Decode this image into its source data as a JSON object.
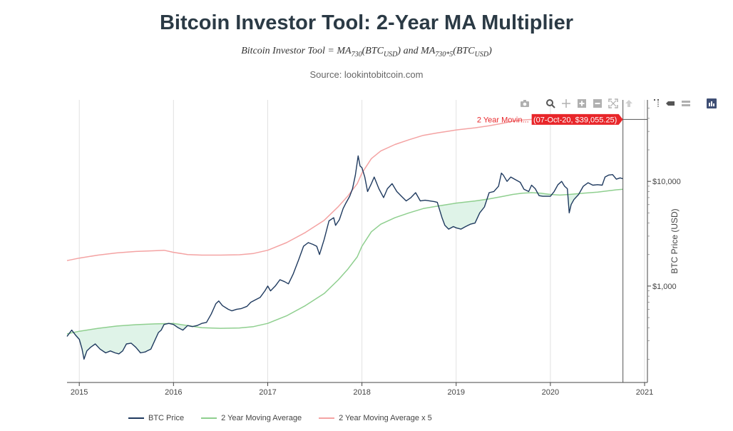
{
  "header": {
    "title": "Bitcoin Investor Tool: 2-Year MA Multiplier",
    "formula_prefix": "Bitcoin Investor Tool = MA",
    "formula_sub1": "730",
    "formula_mid": "(BTC",
    "formula_sub2": "USD",
    "formula_mid2": ") and MA",
    "formula_sub3": "730*5",
    "formula_mid3": "(BTC",
    "formula_sub4": "USD",
    "formula_end": ")",
    "source": "Source: lookintobitcoin.com"
  },
  "modebar": [
    "camera-icon",
    "zoom-icon",
    "pan-icon",
    "zoom-in-icon",
    "zoom-out-icon",
    "autoscale-icon",
    "reset-axes-icon",
    "spike-lines-icon",
    "compare-hover-icon",
    "closest-hover-icon",
    "plotly-logo-icon"
  ],
  "hover": {
    "series_label": "2 Year Movin...",
    "value_label": "(07-Oct-20, $39,055.25)"
  },
  "colors": {
    "btc": "#1f3a5f",
    "ma": "#8fcf8f",
    "ma5": "#f4a3a3",
    "hover_bg": "#e8262a",
    "fill": "#dff3e8"
  },
  "chart_data": {
    "type": "line",
    "title": "Bitcoin Investor Tool: 2-Year MA Multiplier",
    "ylabel": "BTC Price (USD)",
    "yscale": "log",
    "ylim": [
      120,
      60000
    ],
    "xlim": [
      2014.87,
      2021.03
    ],
    "x_ticks": [
      "2015",
      "2016",
      "2017",
      "2018",
      "2019",
      "2020",
      "2021"
    ],
    "y_ticks": [
      "$1,000",
      "$10,000"
    ],
    "grid": true,
    "legend_position": "bottom",
    "series": [
      {
        "name": "BTC Price",
        "points": [
          [
            2014.87,
            330
          ],
          [
            2014.92,
            380
          ],
          [
            2014.96,
            340
          ],
          [
            2015.0,
            310
          ],
          [
            2015.03,
            250
          ],
          [
            2015.05,
            200
          ],
          [
            2015.08,
            240
          ],
          [
            2015.12,
            260
          ],
          [
            2015.17,
            280
          ],
          [
            2015.22,
            250
          ],
          [
            2015.28,
            230
          ],
          [
            2015.33,
            240
          ],
          [
            2015.38,
            230
          ],
          [
            2015.42,
            225
          ],
          [
            2015.46,
            240
          ],
          [
            2015.5,
            280
          ],
          [
            2015.55,
            285
          ],
          [
            2015.6,
            260
          ],
          [
            2015.65,
            230
          ],
          [
            2015.7,
            235
          ],
          [
            2015.72,
            240
          ],
          [
            2015.76,
            250
          ],
          [
            2015.8,
            300
          ],
          [
            2015.84,
            360
          ],
          [
            2015.87,
            380
          ],
          [
            2015.9,
            430
          ],
          [
            2015.95,
            440
          ],
          [
            2016.0,
            430
          ],
          [
            2016.05,
            400
          ],
          [
            2016.1,
            380
          ],
          [
            2016.15,
            420
          ],
          [
            2016.2,
            410
          ],
          [
            2016.25,
            420
          ],
          [
            2016.3,
            440
          ],
          [
            2016.35,
            450
          ],
          [
            2016.4,
            540
          ],
          [
            2016.45,
            680
          ],
          [
            2016.48,
            720
          ],
          [
            2016.52,
            650
          ],
          [
            2016.58,
            600
          ],
          [
            2016.62,
            580
          ],
          [
            2016.67,
            600
          ],
          [
            2016.72,
            610
          ],
          [
            2016.78,
            640
          ],
          [
            2016.82,
            700
          ],
          [
            2016.87,
            740
          ],
          [
            2016.92,
            780
          ],
          [
            2016.97,
            900
          ],
          [
            2017.0,
            1000
          ],
          [
            2017.03,
            900
          ],
          [
            2017.08,
            1000
          ],
          [
            2017.13,
            1150
          ],
          [
            2017.18,
            1100
          ],
          [
            2017.22,
            1050
          ],
          [
            2017.27,
            1300
          ],
          [
            2017.33,
            1800
          ],
          [
            2017.38,
            2400
          ],
          [
            2017.43,
            2600
          ],
          [
            2017.48,
            2500
          ],
          [
            2017.52,
            2400
          ],
          [
            2017.55,
            2000
          ],
          [
            2017.6,
            2800
          ],
          [
            2017.65,
            4200
          ],
          [
            2017.7,
            4500
          ],
          [
            2017.72,
            3800
          ],
          [
            2017.76,
            4300
          ],
          [
            2017.8,
            5500
          ],
          [
            2017.83,
            6200
          ],
          [
            2017.87,
            7200
          ],
          [
            2017.9,
            8500
          ],
          [
            2017.93,
            11500
          ],
          [
            2017.96,
            17500
          ],
          [
            2017.98,
            14000
          ],
          [
            2018.0,
            13500
          ],
          [
            2018.03,
            11000
          ],
          [
            2018.06,
            8000
          ],
          [
            2018.1,
            9500
          ],
          [
            2018.13,
            11000
          ],
          [
            2018.18,
            8500
          ],
          [
            2018.23,
            7000
          ],
          [
            2018.27,
            8500
          ],
          [
            2018.32,
            9500
          ],
          [
            2018.37,
            8000
          ],
          [
            2018.42,
            7200
          ],
          [
            2018.47,
            6500
          ],
          [
            2018.52,
            7000
          ],
          [
            2018.57,
            7800
          ],
          [
            2018.62,
            6500
          ],
          [
            2018.67,
            6600
          ],
          [
            2018.72,
            6500
          ],
          [
            2018.77,
            6400
          ],
          [
            2018.8,
            6300
          ],
          [
            2018.85,
            4500
          ],
          [
            2018.88,
            3800
          ],
          [
            2018.92,
            3500
          ],
          [
            2018.97,
            3700
          ],
          [
            2019.0,
            3600
          ],
          [
            2019.05,
            3500
          ],
          [
            2019.1,
            3700
          ],
          [
            2019.15,
            3900
          ],
          [
            2019.2,
            4000
          ],
          [
            2019.25,
            5000
          ],
          [
            2019.3,
            5700
          ],
          [
            2019.35,
            7800
          ],
          [
            2019.4,
            8000
          ],
          [
            2019.45,
            9000
          ],
          [
            2019.48,
            12000
          ],
          [
            2019.5,
            11500
          ],
          [
            2019.54,
            10000
          ],
          [
            2019.58,
            11000
          ],
          [
            2019.62,
            10500
          ],
          [
            2019.68,
            9800
          ],
          [
            2019.72,
            8400
          ],
          [
            2019.77,
            8000
          ],
          [
            2019.8,
            9200
          ],
          [
            2019.84,
            8500
          ],
          [
            2019.88,
            7300
          ],
          [
            2019.92,
            7200
          ],
          [
            2019.96,
            7200
          ],
          [
            2020.0,
            7200
          ],
          [
            2020.04,
            8000
          ],
          [
            2020.08,
            9300
          ],
          [
            2020.12,
            10000
          ],
          [
            2020.15,
            9000
          ],
          [
            2020.18,
            8500
          ],
          [
            2020.2,
            5000
          ],
          [
            2020.22,
            6000
          ],
          [
            2020.25,
            6700
          ],
          [
            2020.3,
            7500
          ],
          [
            2020.35,
            9000
          ],
          [
            2020.4,
            9700
          ],
          [
            2020.45,
            9200
          ],
          [
            2020.5,
            9300
          ],
          [
            2020.55,
            9200
          ],
          [
            2020.58,
            11000
          ],
          [
            2020.62,
            11500
          ],
          [
            2020.66,
            11600
          ],
          [
            2020.7,
            10500
          ],
          [
            2020.74,
            10800
          ],
          [
            2020.77,
            10600
          ]
        ]
      },
      {
        "name": "2 Year Moving Average",
        "points": [
          [
            2014.87,
            350
          ],
          [
            2015.0,
            370
          ],
          [
            2015.2,
            395
          ],
          [
            2015.4,
            415
          ],
          [
            2015.6,
            428
          ],
          [
            2015.8,
            435
          ],
          [
            2016.0,
            440
          ],
          [
            2016.15,
            420
          ],
          [
            2016.3,
            400
          ],
          [
            2016.5,
            395
          ],
          [
            2016.7,
            398
          ],
          [
            2016.85,
            410
          ],
          [
            2017.0,
            440
          ],
          [
            2017.2,
            520
          ],
          [
            2017.4,
            650
          ],
          [
            2017.6,
            850
          ],
          [
            2017.75,
            1150
          ],
          [
            2017.85,
            1450
          ],
          [
            2017.95,
            1900
          ],
          [
            2018.0,
            2400
          ],
          [
            2018.1,
            3300
          ],
          [
            2018.2,
            3900
          ],
          [
            2018.35,
            4500
          ],
          [
            2018.5,
            5000
          ],
          [
            2018.65,
            5500
          ],
          [
            2018.8,
            5800
          ],
          [
            2018.9,
            6000
          ],
          [
            2019.0,
            6200
          ],
          [
            2019.1,
            6350
          ],
          [
            2019.2,
            6500
          ],
          [
            2019.35,
            6800
          ],
          [
            2019.5,
            7200
          ],
          [
            2019.6,
            7500
          ],
          [
            2019.7,
            7700
          ],
          [
            2019.8,
            7800
          ],
          [
            2019.9,
            7700
          ],
          [
            2020.0,
            7500
          ],
          [
            2020.1,
            7400
          ],
          [
            2020.2,
            7500
          ],
          [
            2020.35,
            7700
          ],
          [
            2020.5,
            7900
          ],
          [
            2020.6,
            8100
          ],
          [
            2020.7,
            8300
          ],
          [
            2020.77,
            8400
          ]
        ]
      },
      {
        "name": "2 Year Moving Average x 5",
        "points": [
          [
            2014.87,
            1750
          ],
          [
            2015.0,
            1850
          ],
          [
            2015.2,
            1975
          ],
          [
            2015.4,
            2075
          ],
          [
            2015.6,
            2140
          ],
          [
            2015.8,
            2175
          ],
          [
            2015.9,
            2200
          ],
          [
            2016.0,
            2100
          ],
          [
            2016.15,
            2000
          ],
          [
            2016.3,
            1975
          ],
          [
            2016.5,
            1975
          ],
          [
            2016.7,
            1990
          ],
          [
            2016.85,
            2050
          ],
          [
            2017.0,
            2200
          ],
          [
            2017.2,
            2600
          ],
          [
            2017.4,
            3250
          ],
          [
            2017.6,
            4250
          ],
          [
            2017.75,
            5750
          ],
          [
            2017.85,
            7250
          ],
          [
            2017.95,
            9500
          ],
          [
            2018.0,
            12000
          ],
          [
            2018.1,
            16500
          ],
          [
            2018.2,
            19500
          ],
          [
            2018.35,
            22500
          ],
          [
            2018.5,
            25000
          ],
          [
            2018.65,
            27500
          ],
          [
            2018.8,
            29000
          ],
          [
            2018.9,
            30000
          ],
          [
            2019.0,
            31000
          ],
          [
            2019.1,
            31750
          ],
          [
            2019.2,
            32500
          ],
          [
            2019.35,
            34000
          ],
          [
            2019.5,
            36000
          ],
          [
            2019.6,
            37500
          ],
          [
            2019.7,
            38500
          ],
          [
            2019.8,
            39000
          ],
          [
            2019.9,
            38500
          ],
          [
            2020.0,
            37500
          ],
          [
            2020.1,
            37000
          ],
          [
            2020.2,
            37500
          ],
          [
            2020.35,
            38500
          ],
          [
            2020.5,
            39000
          ],
          [
            2020.6,
            39500
          ],
          [
            2020.77,
            39055
          ]
        ]
      }
    ]
  }
}
